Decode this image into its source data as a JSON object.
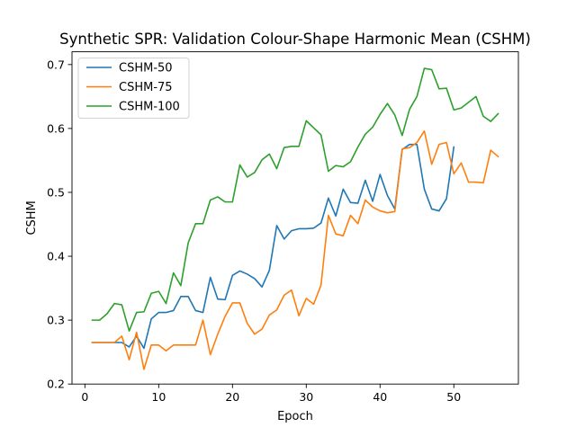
{
  "chart_data": {
    "type": "line",
    "title": "Synthetic SPR: Validation Colour-Shape Harmonic Mean (CSHM)",
    "xlabel": "Epoch",
    "ylabel": "CSHM",
    "xlim": [
      -1.75,
      58.75
    ],
    "ylim": [
      0.2,
      0.72
    ],
    "xticks": [
      0,
      10,
      20,
      30,
      40,
      50
    ],
    "yticks": [
      0.2,
      0.3,
      0.4,
      0.5,
      0.6,
      0.7
    ],
    "xtick_labels": [
      "0",
      "10",
      "20",
      "30",
      "40",
      "50"
    ],
    "ytick_labels": [
      "0.2",
      "0.3",
      "0.4",
      "0.5",
      "0.6",
      "0.7"
    ],
    "grid": false,
    "legend_position": "upper-left",
    "series": [
      {
        "name": "CSHM-50",
        "color": "#1f77b4",
        "x": [
          1,
          2,
          3,
          4,
          5,
          6,
          7,
          8,
          9,
          10,
          11,
          12,
          13,
          14,
          15,
          16,
          17,
          18,
          19,
          20,
          21,
          22,
          23,
          24,
          25,
          26,
          27,
          28,
          29,
          30,
          31,
          32,
          33,
          34,
          35,
          36,
          37,
          38,
          39,
          40,
          41,
          42,
          43,
          44,
          45,
          46,
          47,
          48,
          49,
          50
        ],
        "values": [
          0.265,
          0.265,
          0.265,
          0.265,
          0.265,
          0.258,
          0.275,
          0.256,
          0.302,
          0.312,
          0.312,
          0.315,
          0.337,
          0.337,
          0.315,
          0.312,
          0.367,
          0.333,
          0.332,
          0.37,
          0.377,
          0.372,
          0.365,
          0.352,
          0.378,
          0.448,
          0.427,
          0.44,
          0.443,
          0.443,
          0.444,
          0.452,
          0.491,
          0.463,
          0.505,
          0.484,
          0.483,
          0.519,
          0.486,
          0.528,
          0.495,
          0.474,
          0.567,
          0.575,
          0.575,
          0.505,
          0.474,
          0.471,
          0.49,
          0.571
        ]
      },
      {
        "name": "CSHM-75",
        "color": "#ff7f0e",
        "x": [
          1,
          2,
          3,
          4,
          5,
          6,
          7,
          8,
          9,
          10,
          11,
          12,
          13,
          14,
          15,
          16,
          17,
          18,
          19,
          20,
          21,
          22,
          23,
          24,
          25,
          26,
          27,
          28,
          29,
          30,
          31,
          32,
          33,
          34,
          35,
          36,
          37,
          38,
          39,
          40,
          41,
          42,
          43,
          44,
          45,
          46,
          47,
          48,
          49,
          50,
          51,
          52,
          53,
          54,
          55,
          56
        ],
        "values": [
          0.265,
          0.265,
          0.265,
          0.265,
          0.275,
          0.238,
          0.281,
          0.223,
          0.261,
          0.261,
          0.252,
          0.261,
          0.261,
          0.261,
          0.261,
          0.3,
          0.246,
          0.278,
          0.306,
          0.327,
          0.327,
          0.295,
          0.278,
          0.286,
          0.308,
          0.316,
          0.339,
          0.347,
          0.307,
          0.334,
          0.325,
          0.355,
          0.464,
          0.435,
          0.432,
          0.464,
          0.451,
          0.488,
          0.477,
          0.471,
          0.468,
          0.47,
          0.568,
          0.57,
          0.578,
          0.596,
          0.544,
          0.575,
          0.578,
          0.529,
          0.546,
          0.516,
          0.516,
          0.515,
          0.566,
          0.556
        ]
      },
      {
        "name": "CSHM-100",
        "color": "#2ca02c",
        "x": [
          1,
          2,
          3,
          4,
          5,
          6,
          7,
          8,
          9,
          10,
          11,
          12,
          13,
          14,
          15,
          16,
          17,
          18,
          19,
          20,
          21,
          22,
          23,
          24,
          25,
          26,
          27,
          28,
          29,
          30,
          31,
          32,
          33,
          34,
          35,
          36,
          37,
          38,
          39,
          40,
          41,
          42,
          43,
          44,
          45,
          46,
          47,
          48,
          49,
          50,
          51,
          52,
          53,
          54,
          55,
          56
        ],
        "values": [
          0.3,
          0.3,
          0.31,
          0.326,
          0.324,
          0.283,
          0.312,
          0.313,
          0.342,
          0.345,
          0.326,
          0.374,
          0.354,
          0.421,
          0.451,
          0.451,
          0.488,
          0.493,
          0.485,
          0.485,
          0.543,
          0.524,
          0.531,
          0.551,
          0.56,
          0.537,
          0.57,
          0.572,
          0.572,
          0.612,
          0.601,
          0.59,
          0.533,
          0.542,
          0.54,
          0.548,
          0.571,
          0.591,
          0.602,
          0.622,
          0.639,
          0.621,
          0.589,
          0.63,
          0.65,
          0.694,
          0.692,
          0.662,
          0.663,
          0.629,
          0.632,
          0.641,
          0.65,
          0.619,
          0.611,
          0.623
        ]
      }
    ]
  }
}
